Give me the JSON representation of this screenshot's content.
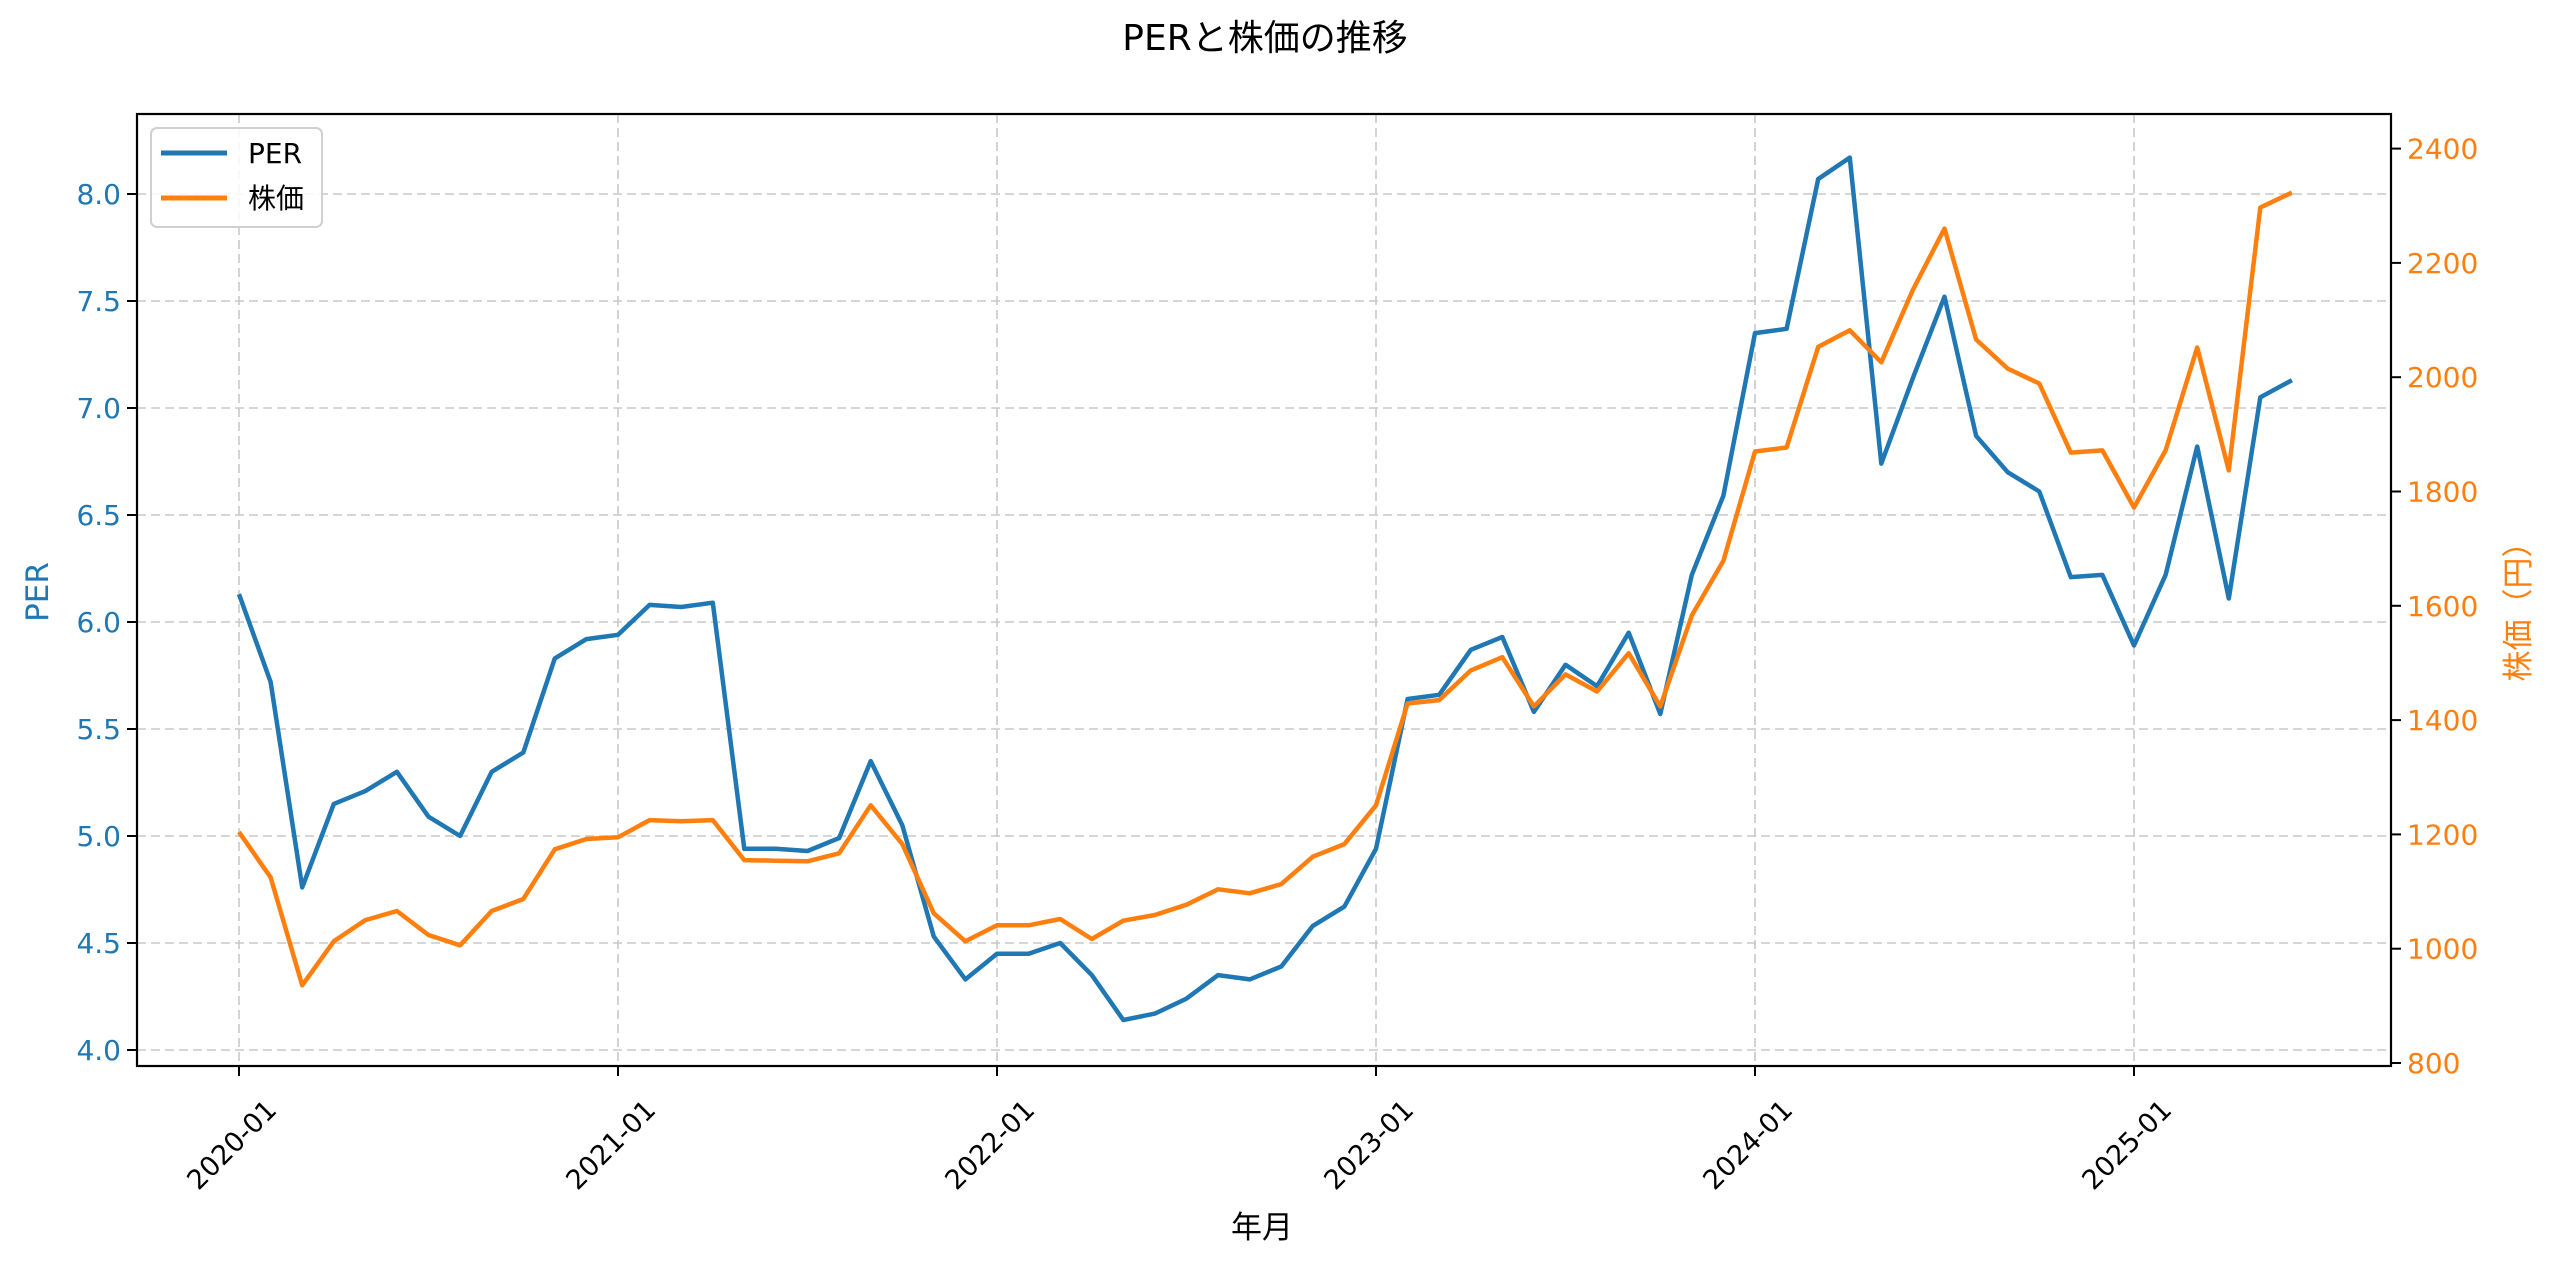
{
  "figure": {
    "title": "PERと株価の推移",
    "xlabel": "年月",
    "ylabel_left": "PER",
    "ylabel_right": "株価（円）",
    "legend": [
      {
        "label": "PER",
        "color": "#1f77b4"
      },
      {
        "label": "株価",
        "color": "#ff7f0e"
      }
    ],
    "colors": {
      "per": "#1f77b4",
      "price": "#ff7f0e",
      "grid": "#c8c8c8"
    }
  },
  "axes": {
    "x_ticks": [
      "2020-01",
      "2021-01",
      "2022-01",
      "2023-01",
      "2024-01",
      "2025-01"
    ],
    "y_left_ticks": [
      "4.0",
      "4.5",
      "5.0",
      "5.5",
      "6.0",
      "6.5",
      "7.0",
      "7.5",
      "8.0"
    ],
    "y_right_ticks": [
      "800",
      "1000",
      "1200",
      "1400",
      "1600",
      "1800",
      "2000",
      "2200",
      "2400"
    ]
  },
  "chart_data": {
    "type": "line",
    "title": "PERと株価の推移",
    "xlabel": "年月",
    "ylabel": "PER",
    "ylabel_secondary": "株価（円）",
    "x": [
      "2020-01",
      "2020-02",
      "2020-03",
      "2020-04",
      "2020-05",
      "2020-06",
      "2020-07",
      "2020-08",
      "2020-09",
      "2020-10",
      "2020-11",
      "2020-12",
      "2021-01",
      "2021-02",
      "2021-03",
      "2021-04",
      "2021-05",
      "2021-06",
      "2021-07",
      "2021-08",
      "2021-09",
      "2021-10",
      "2021-11",
      "2021-12",
      "2022-01",
      "2022-02",
      "2022-03",
      "2022-04",
      "2022-05",
      "2022-06",
      "2022-07",
      "2022-08",
      "2022-09",
      "2022-10",
      "2022-11",
      "2022-12",
      "2023-01",
      "2023-02",
      "2023-03",
      "2023-04",
      "2023-05",
      "2023-06",
      "2023-07",
      "2023-08",
      "2023-09",
      "2023-10",
      "2023-11",
      "2023-12",
      "2024-01",
      "2024-02",
      "2024-03",
      "2024-04",
      "2024-05",
      "2024-06",
      "2024-07",
      "2024-08",
      "2024-09",
      "2024-10",
      "2024-11",
      "2024-12",
      "2025-01",
      "2025-02",
      "2025-03",
      "2025-04",
      "2025-05",
      "2025-06"
    ],
    "series": [
      {
        "name": "PER",
        "axis": "left",
        "color": "#1f77b4",
        "values": [
          6.13,
          5.72,
          4.76,
          5.15,
          5.21,
          5.3,
          5.09,
          5.0,
          5.3,
          5.39,
          5.83,
          5.92,
          5.94,
          6.08,
          6.07,
          6.09,
          4.94,
          4.94,
          4.93,
          4.99,
          5.35,
          5.05,
          4.53,
          4.33,
          4.45,
          4.45,
          4.5,
          4.35,
          4.14,
          4.17,
          4.24,
          4.35,
          4.33,
          4.39,
          4.58,
          4.67,
          4.94,
          5.64,
          5.66,
          5.87,
          5.93,
          5.58,
          5.8,
          5.7,
          5.95,
          5.57,
          6.22,
          6.59,
          7.35,
          7.37,
          8.07,
          8.17,
          6.74,
          7.14,
          7.52,
          6.87,
          6.7,
          6.61,
          6.21,
          6.22,
          5.89,
          6.22,
          6.82,
          6.11,
          7.05,
          7.13
        ]
      },
      {
        "name": "株価",
        "axis": "right",
        "color": "#ff7f0e",
        "values": [
          1204,
          1125,
          936,
          1013,
          1050,
          1066,
          1024,
          1006,
          1066,
          1087,
          1174,
          1192,
          1195,
          1225,
          1223,
          1225,
          1155,
          1154,
          1153,
          1167,
          1251,
          1183,
          1062,
          1013,
          1041,
          1041,
          1052,
          1017,
          1049,
          1059,
          1077,
          1104,
          1097,
          1113,
          1161,
          1183,
          1251,
          1429,
          1435,
          1487,
          1510,
          1424,
          1480,
          1450,
          1517,
          1424,
          1583,
          1679,
          1870,
          1877,
          2053,
          2082,
          2026,
          2153,
          2260,
          2066,
          2015,
          1989,
          1868,
          1872,
          1772,
          1872,
          2052,
          1837,
          2297,
          2323
        ]
      }
    ],
    "ylim": [
      3.925,
      8.38
    ],
    "ylim_secondary": [
      795,
      2463
    ],
    "x_tick_labels": [
      "2020-01",
      "2021-01",
      "2022-01",
      "2023-01",
      "2024-01",
      "2025-01"
    ],
    "grid": true,
    "legend_position": "upper left"
  }
}
